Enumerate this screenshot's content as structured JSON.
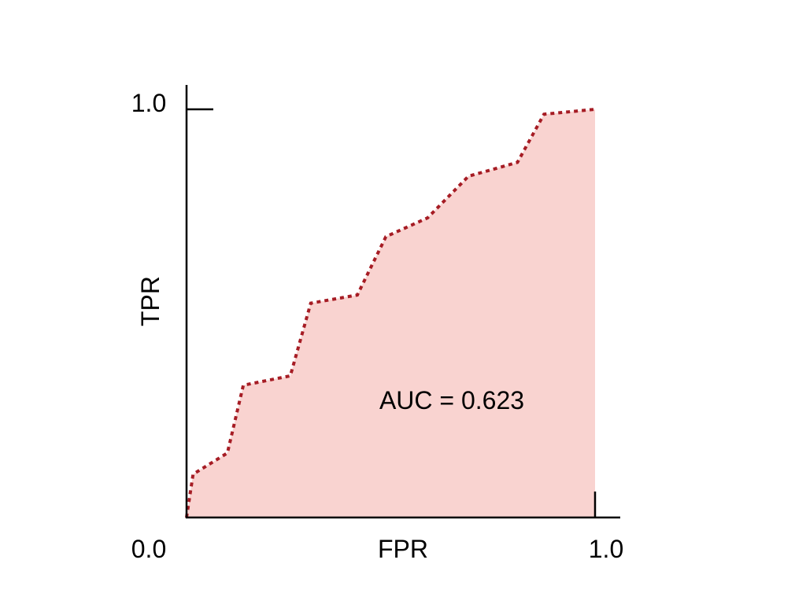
{
  "chart_data": {
    "type": "area",
    "title": "",
    "xlabel": "FPR",
    "ylabel": "TPR",
    "xlim": [
      0,
      1
    ],
    "ylim": [
      0,
      1
    ],
    "grid": false,
    "x_tick_labels": [
      "0.0",
      "1.0"
    ],
    "y_tick_labels": [
      "1.0"
    ],
    "annotation": "AUC = 0.623",
    "series": [
      {
        "x": [
          0,
          0.016,
          0.1,
          0.139,
          0.254,
          0.304,
          0.418,
          0.488,
          0.59,
          0.69,
          0.81,
          0.875,
          1.0
        ],
        "y": [
          0,
          0.106,
          0.158,
          0.324,
          0.347,
          0.525,
          0.545,
          0.688,
          0.734,
          0.836,
          0.87,
          0.988,
          1.0
        ]
      }
    ],
    "colors": {
      "line": "#a61c24",
      "fill": "#f9d3d0",
      "axis": "#000000"
    }
  }
}
